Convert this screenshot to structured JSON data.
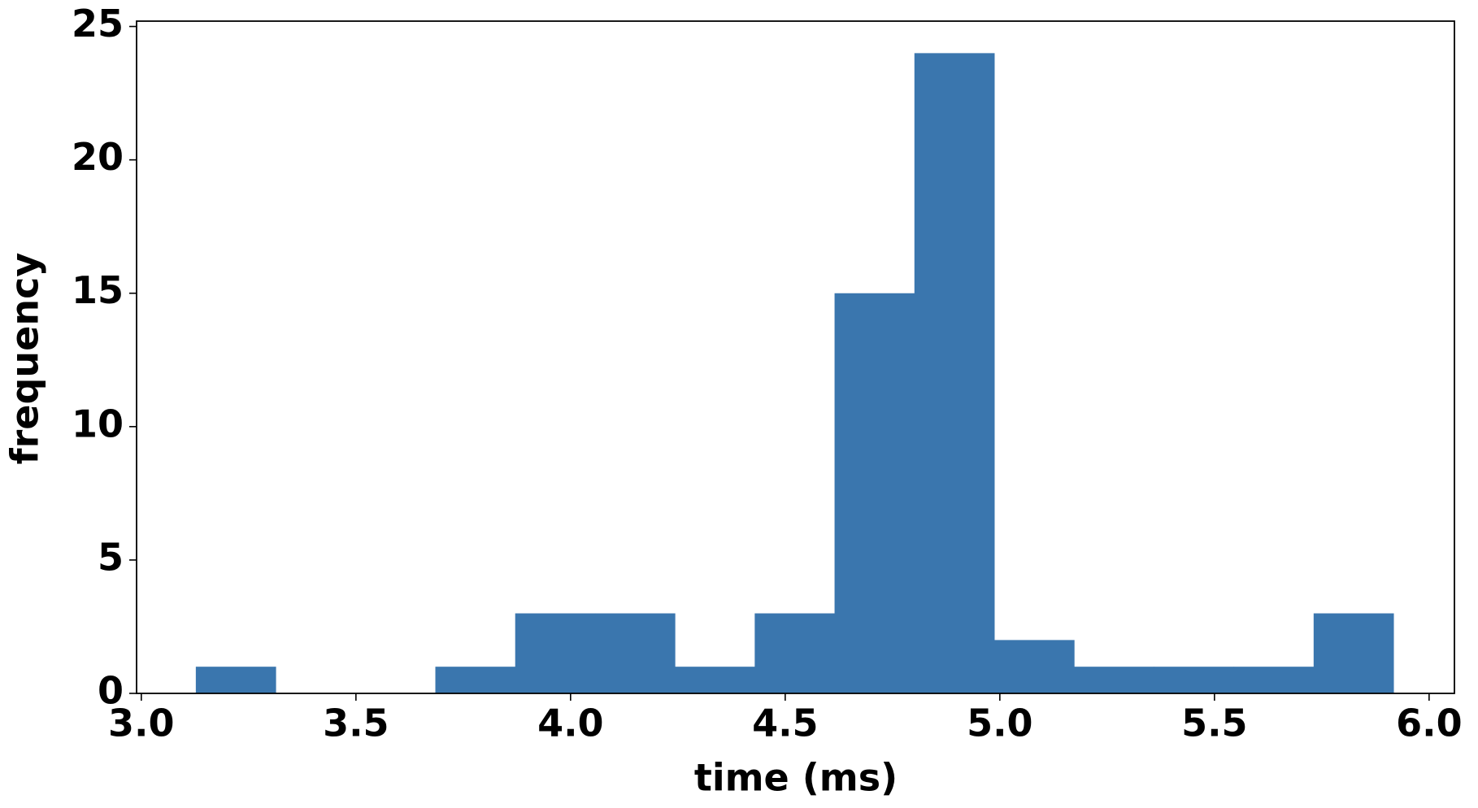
{
  "chart_data": {
    "type": "histogram",
    "x_label": "time (ms)",
    "y_label": "frequency",
    "bins": [
      3.127,
      3.313,
      3.499,
      3.685,
      3.871,
      4.057,
      4.243,
      4.429,
      4.615,
      4.801,
      4.987,
      5.173,
      5.359,
      5.545,
      5.731,
      5.917
    ],
    "values": [
      1,
      0,
      0,
      1,
      3,
      3,
      1,
      3,
      15,
      24,
      2,
      1,
      1,
      1,
      3
    ],
    "color": "#3a76ae",
    "xlim": [
      2.989,
      6.059
    ],
    "xticks": [
      {
        "value": 3,
        "label": "3.0"
      },
      3.5,
      {
        "value": 4,
        "label": "4.0"
      },
      4.5,
      {
        "value": 5,
        "label": "5.0"
      },
      5.5,
      {
        "value": 6,
        "label": "6.0"
      }
    ],
    "ylim": [
      0,
      25.2
    ],
    "yticks": [
      0,
      5,
      10,
      15,
      20,
      25
    ],
    "grid": false
  }
}
